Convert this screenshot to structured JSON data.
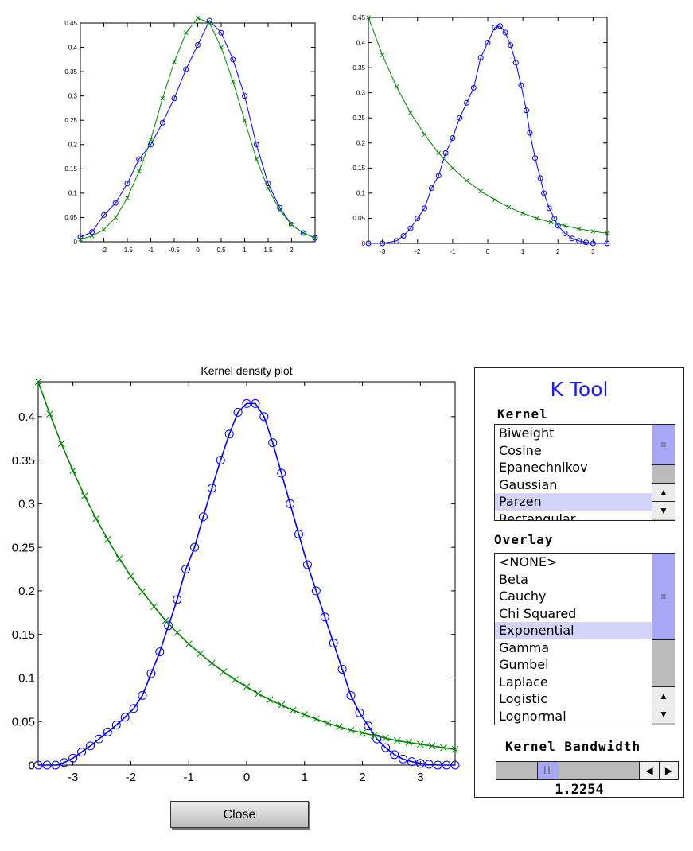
{
  "chart_data": [
    {
      "type": "line",
      "title": "",
      "xlim": [
        -2.5,
        2.5
      ],
      "ylim": [
        0,
        0.45
      ],
      "xticks": [
        -2,
        -1.5,
        -1,
        -0.5,
        0,
        0.5,
        1,
        1.5,
        2
      ],
      "yticks": [
        0,
        0.05,
        0.1,
        0.15,
        0.2,
        0.25,
        0.3,
        0.35,
        0.4,
        0.45
      ],
      "series": [
        {
          "name": "kernel",
          "color": "#0000ff",
          "marker": "o",
          "x": [
            -2.5,
            -2.25,
            -2,
            -1.75,
            -1.5,
            -1.25,
            -1,
            -0.75,
            -0.5,
            -0.25,
            0,
            0.25,
            0.5,
            0.75,
            1,
            1.25,
            1.5,
            1.75,
            2,
            2.25,
            2.5
          ],
          "y": [
            0.01,
            0.02,
            0.055,
            0.08,
            0.12,
            0.17,
            0.2,
            0.245,
            0.295,
            0.355,
            0.405,
            0.455,
            0.43,
            0.375,
            0.3,
            0.2,
            0.12,
            0.07,
            0.035,
            0.018,
            0.008
          ]
        },
        {
          "name": "overlay",
          "color": "#008800",
          "marker": "x",
          "x": [
            -2.5,
            -2.25,
            -2,
            -1.75,
            -1.5,
            -1.25,
            -1,
            -0.75,
            -0.5,
            -0.25,
            0,
            0.25,
            0.5,
            0.75,
            1,
            1.25,
            1.5,
            1.75,
            2,
            2.25,
            2.5
          ],
          "y": [
            0.005,
            0.012,
            0.025,
            0.05,
            0.09,
            0.145,
            0.21,
            0.295,
            0.37,
            0.43,
            0.46,
            0.45,
            0.4,
            0.33,
            0.25,
            0.17,
            0.11,
            0.065,
            0.035,
            0.018,
            0.008
          ]
        }
      ]
    },
    {
      "type": "line",
      "title": "",
      "xlim": [
        -3.4,
        3.4
      ],
      "ylim": [
        0,
        0.45
      ],
      "xticks": [
        -3,
        -2,
        -1,
        0,
        1,
        2,
        3
      ],
      "yticks": [
        0,
        0.05,
        0.1,
        0.15,
        0.2,
        0.25,
        0.3,
        0.35,
        0.4,
        0.45
      ],
      "series": [
        {
          "name": "kernel",
          "color": "#0000ff",
          "marker": "o",
          "x": [
            -3.4,
            -3,
            -2.6,
            -2.4,
            -2.2,
            -2,
            -1.8,
            -1.6,
            -1.4,
            -1.2,
            -1,
            -0.8,
            -0.6,
            -0.4,
            -0.2,
            0,
            0.2,
            0.35,
            0.5,
            0.65,
            0.8,
            0.95,
            1.1,
            1.2,
            1.35,
            1.5,
            1.6,
            1.75,
            1.9,
            2,
            2.2,
            2.4,
            2.6,
            2.8,
            3,
            3.4
          ],
          "y": [
            0,
            0,
            0.005,
            0.015,
            0.03,
            0.05,
            0.07,
            0.11,
            0.135,
            0.18,
            0.21,
            0.25,
            0.28,
            0.31,
            0.37,
            0.4,
            0.43,
            0.433,
            0.42,
            0.395,
            0.36,
            0.315,
            0.265,
            0.22,
            0.17,
            0.13,
            0.1,
            0.07,
            0.05,
            0.035,
            0.02,
            0.01,
            0.005,
            0.002,
            0,
            0
          ]
        },
        {
          "name": "overlay",
          "color": "#008800",
          "marker": "x",
          "x": [
            -3.4,
            -3,
            -2.6,
            -2.2,
            -1.8,
            -1.4,
            -1,
            -0.6,
            -0.2,
            0.2,
            0.6,
            1,
            1.4,
            1.8,
            2.2,
            2.6,
            3,
            3.4
          ],
          "y": [
            0.45,
            0.375,
            0.312,
            0.26,
            0.217,
            0.18,
            0.15,
            0.125,
            0.104,
            0.087,
            0.072,
            0.06,
            0.05,
            0.042,
            0.035,
            0.029,
            0.024,
            0.02
          ]
        }
      ]
    },
    {
      "type": "line",
      "title": "Kernel density plot",
      "xlim": [
        -3.6,
        3.6
      ],
      "ylim": [
        0,
        0.44
      ],
      "xticks": [
        -3,
        -2,
        -1,
        0,
        1,
        2,
        3
      ],
      "yticks": [
        0,
        0.05,
        0.1,
        0.15,
        0.2,
        0.25,
        0.3,
        0.35,
        0.4
      ],
      "series": [
        {
          "name": "kernel",
          "color": "#0000ff",
          "marker": "o",
          "x": [
            -3.6,
            -3.45,
            -3.3,
            -3.15,
            -3,
            -2.85,
            -2.7,
            -2.55,
            -2.4,
            -2.25,
            -2.1,
            -1.95,
            -1.8,
            -1.65,
            -1.5,
            -1.35,
            -1.2,
            -1.05,
            -0.9,
            -0.75,
            -0.6,
            -0.45,
            -0.3,
            -0.15,
            0,
            0.15,
            0.3,
            0.45,
            0.6,
            0.75,
            0.9,
            1.05,
            1.2,
            1.35,
            1.5,
            1.65,
            1.8,
            1.95,
            2.1,
            2.25,
            2.4,
            2.55,
            2.7,
            2.85,
            3,
            3.15,
            3.3,
            3.45,
            3.6
          ],
          "y": [
            0,
            0,
            0,
            0.003,
            0.008,
            0.015,
            0.022,
            0.03,
            0.038,
            0.046,
            0.055,
            0.065,
            0.08,
            0.105,
            0.13,
            0.16,
            0.19,
            0.225,
            0.25,
            0.285,
            0.318,
            0.35,
            0.38,
            0.405,
            0.415,
            0.415,
            0.4,
            0.37,
            0.335,
            0.3,
            0.265,
            0.23,
            0.2,
            0.17,
            0.14,
            0.11,
            0.08,
            0.06,
            0.045,
            0.03,
            0.02,
            0.012,
            0.007,
            0.004,
            0.002,
            0.001,
            0,
            0,
            0
          ]
        },
        {
          "name": "overlay",
          "color": "#008800",
          "marker": "x",
          "x": [
            -3.6,
            -3.4,
            -3.2,
            -3,
            -2.8,
            -2.6,
            -2.4,
            -2.2,
            -2,
            -1.8,
            -1.6,
            -1.4,
            -1.2,
            -1,
            -0.8,
            -0.6,
            -0.4,
            -0.2,
            0,
            0.2,
            0.4,
            0.6,
            0.8,
            1,
            1.2,
            1.4,
            1.6,
            1.8,
            2,
            2.2,
            2.4,
            2.6,
            2.8,
            3,
            3.2,
            3.4,
            3.6
          ],
          "y": [
            0.44,
            0.403,
            0.369,
            0.338,
            0.309,
            0.283,
            0.259,
            0.237,
            0.217,
            0.199,
            0.182,
            0.166,
            0.152,
            0.139,
            0.128,
            0.117,
            0.107,
            0.098,
            0.09,
            0.082,
            0.075,
            0.069,
            0.063,
            0.058,
            0.053,
            0.048,
            0.044,
            0.04,
            0.037,
            0.034,
            0.031,
            0.028,
            0.026,
            0.024,
            0.022,
            0.02,
            0.018
          ]
        }
      ]
    }
  ],
  "ktool": {
    "title": "K Tool",
    "kernel_label": "Kernel",
    "kernel_items": [
      "Biweight",
      "Cosine",
      "Epanechnikov",
      "Gaussian",
      "Parzen",
      "Rectangular"
    ],
    "kernel_selected": "Parzen",
    "overlay_label": "Overlay",
    "overlay_items": [
      "<NONE>",
      "Beta",
      "Cauchy",
      "Chi Squared",
      "Exponential",
      "Gamma",
      "Gumbel",
      "Laplace",
      "Logistic",
      "Lognormal"
    ],
    "overlay_selected": "Exponential",
    "bandwidth_label": "Kernel Bandwidth",
    "bandwidth_value": "1.2254",
    "bandwidth_slider_fraction": 0.33
  },
  "close_label": "Close"
}
